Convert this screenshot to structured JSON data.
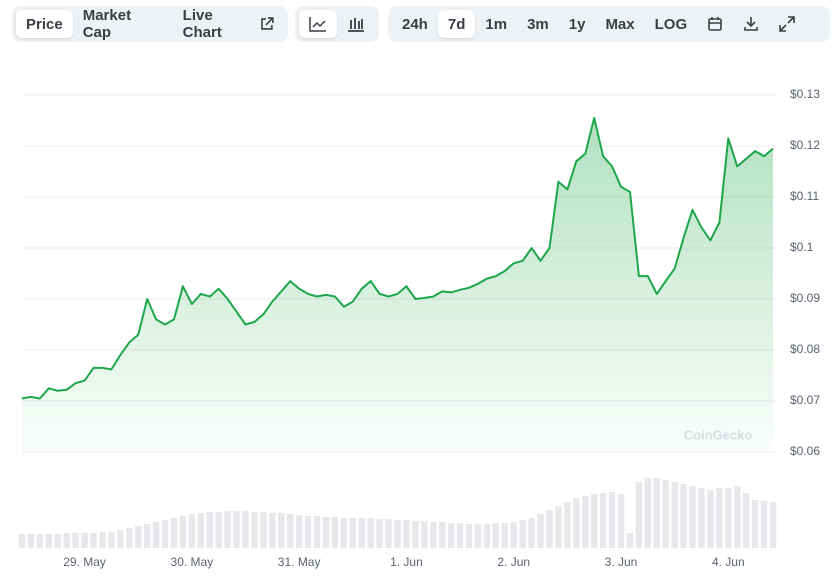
{
  "toolbar": {
    "views": [
      "Price",
      "Market Cap",
      "Live Chart"
    ],
    "ranges": [
      "24h",
      "7d",
      "1m",
      "3m",
      "1y",
      "Max",
      "LOG"
    ]
  },
  "watermark": "CoinGecko",
  "chart_data": {
    "type": "line",
    "color": "#1ea64a",
    "volume_color": "#e6e8eb",
    "grid": true,
    "ylim": [
      0.06,
      0.13
    ],
    "yticks": [
      {
        "value": 0.06,
        "label": "$0.06"
      },
      {
        "value": 0.07,
        "label": "$0.07"
      },
      {
        "value": 0.08,
        "label": "$0.08"
      },
      {
        "value": 0.09,
        "label": "$0.09"
      },
      {
        "value": 0.1,
        "label": "$0.1"
      },
      {
        "value": 0.11,
        "label": "$0.11"
      },
      {
        "value": 0.12,
        "label": "$0.12"
      },
      {
        "value": 0.13,
        "label": "$0.13"
      }
    ],
    "categories": [
      null,
      null,
      null,
      null,
      null,
      null,
      null,
      "29. May",
      null,
      null,
      null,
      null,
      null,
      null,
      null,
      null,
      null,
      null,
      null,
      "30. May",
      null,
      null,
      null,
      null,
      null,
      null,
      null,
      null,
      null,
      null,
      null,
      "31. May",
      null,
      null,
      null,
      null,
      null,
      null,
      null,
      null,
      null,
      null,
      null,
      "1. Jun",
      null,
      null,
      null,
      null,
      null,
      null,
      null,
      null,
      null,
      null,
      null,
      "2. Jun",
      null,
      null,
      null,
      null,
      null,
      null,
      null,
      null,
      null,
      null,
      null,
      "3. Jun",
      null,
      null,
      null,
      null,
      null,
      null,
      null,
      null,
      null,
      null,
      null,
      "4. Jun",
      null,
      null,
      null,
      null,
      null
    ],
    "values": [
      0.0705,
      0.0708,
      0.0705,
      0.0725,
      0.072,
      0.0722,
      0.0735,
      0.074,
      0.0765,
      0.0765,
      0.0762,
      0.079,
      0.0815,
      0.083,
      0.09,
      0.086,
      0.085,
      0.086,
      0.0925,
      0.089,
      0.091,
      0.0905,
      0.092,
      0.09,
      0.0875,
      0.085,
      0.0855,
      0.087,
      0.0895,
      0.0915,
      0.0935,
      0.092,
      0.091,
      0.0905,
      0.0908,
      0.0905,
      0.0885,
      0.0895,
      0.092,
      0.0935,
      0.091,
      0.0905,
      0.091,
      0.0925,
      0.09,
      0.0902,
      0.0905,
      0.0915,
      0.0913,
      0.0918,
      0.0922,
      0.093,
      0.094,
      0.0945,
      0.0955,
      0.097,
      0.0975,
      0.1,
      0.0975,
      0.1,
      0.113,
      0.1115,
      0.117,
      0.1185,
      0.1255,
      0.118,
      0.116,
      0.112,
      0.111,
      0.0945,
      0.0945,
      0.091,
      0.0935,
      0.096,
      0.102,
      0.1075,
      0.104,
      0.1015,
      0.105,
      0.1215,
      0.116,
      0.1175,
      0.119,
      0.118,
      0.1195
    ],
    "volume": [
      14,
      14,
      14,
      14,
      14,
      15,
      15,
      15,
      15,
      16,
      16,
      18,
      20,
      22,
      24,
      26,
      28,
      30,
      32,
      34,
      35,
      36,
      36,
      37,
      37,
      37,
      36,
      36,
      35,
      35,
      34,
      33,
      32,
      32,
      31,
      31,
      30,
      30,
      30,
      30,
      29,
      29,
      28,
      28,
      27,
      27,
      26,
      26,
      25,
      25,
      24,
      24,
      24,
      25,
      25,
      26,
      28,
      30,
      34,
      38,
      42,
      46,
      50,
      52,
      54,
      55,
      56,
      54,
      15,
      66,
      70,
      70,
      68,
      66,
      64,
      62,
      60,
      58,
      60,
      60,
      62,
      55,
      48,
      47,
      46
    ]
  }
}
